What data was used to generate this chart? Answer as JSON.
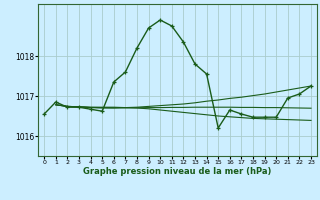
{
  "bg_color": "#cceeff",
  "grid_color": "#aacccc",
  "line_color": "#1a5c1a",
  "xlabel": "Graphe pression niveau de la mer (hPa)",
  "ylim": [
    1015.5,
    1019.3
  ],
  "xlim": [
    -0.5,
    23.5
  ],
  "yticks": [
    1016,
    1017,
    1018
  ],
  "xticks": [
    0,
    1,
    2,
    3,
    4,
    5,
    6,
    7,
    8,
    9,
    10,
    11,
    12,
    13,
    14,
    15,
    16,
    17,
    18,
    19,
    20,
    21,
    22,
    23
  ],
  "series": [
    {
      "x": [
        0,
        1,
        2,
        3,
        4,
        5,
        6,
        7,
        8,
        9,
        10,
        11,
        12,
        13,
        14,
        15,
        16,
        17,
        18,
        19,
        20,
        21,
        22,
        23
      ],
      "y": [
        1016.55,
        1016.85,
        1016.72,
        1016.72,
        1016.67,
        1016.62,
        1017.35,
        1017.6,
        1018.2,
        1018.7,
        1018.9,
        1018.75,
        1018.35,
        1017.8,
        1017.55,
        1016.2,
        1016.65,
        1016.55,
        1016.47,
        1016.47,
        1016.47,
        1016.95,
        1017.05,
        1017.25
      ],
      "marker": true,
      "lw": 1.0
    },
    {
      "x": [
        1,
        2,
        3,
        4,
        5,
        6,
        7,
        8,
        9,
        10,
        11,
        12,
        13,
        14,
        15,
        16,
        17,
        18,
        19,
        20,
        21,
        22,
        23
      ],
      "y": [
        1016.78,
        1016.74,
        1016.73,
        1016.71,
        1016.7,
        1016.7,
        1016.71,
        1016.72,
        1016.74,
        1016.76,
        1016.78,
        1016.8,
        1016.83,
        1016.87,
        1016.9,
        1016.94,
        1016.97,
        1017.01,
        1017.05,
        1017.1,
        1017.15,
        1017.2,
        1017.25
      ],
      "marker": false,
      "lw": 0.8
    },
    {
      "x": [
        1,
        2,
        3,
        4,
        5,
        6,
        7,
        8,
        9,
        10,
        11,
        12,
        13,
        14,
        15,
        16,
        17,
        18,
        19,
        20,
        21,
        22,
        23
      ],
      "y": [
        1016.78,
        1016.74,
        1016.73,
        1016.72,
        1016.72,
        1016.72,
        1016.71,
        1016.7,
        1016.68,
        1016.65,
        1016.62,
        1016.59,
        1016.56,
        1016.53,
        1016.5,
        1016.48,
        1016.46,
        1016.44,
        1016.43,
        1016.42,
        1016.41,
        1016.4,
        1016.39
      ],
      "marker": false,
      "lw": 0.8
    },
    {
      "x": [
        1,
        2,
        3,
        4,
        5,
        6,
        7,
        8,
        9,
        10,
        11,
        12,
        13,
        14,
        15,
        16,
        17,
        18,
        19,
        20,
        21,
        22,
        23
      ],
      "y": [
        1016.78,
        1016.74,
        1016.73,
        1016.715,
        1016.71,
        1016.705,
        1016.705,
        1016.705,
        1016.71,
        1016.71,
        1016.715,
        1016.715,
        1016.72,
        1016.72,
        1016.72,
        1016.72,
        1016.715,
        1016.715,
        1016.71,
        1016.71,
        1016.705,
        1016.7,
        1016.695
      ],
      "marker": false,
      "lw": 0.8
    }
  ]
}
